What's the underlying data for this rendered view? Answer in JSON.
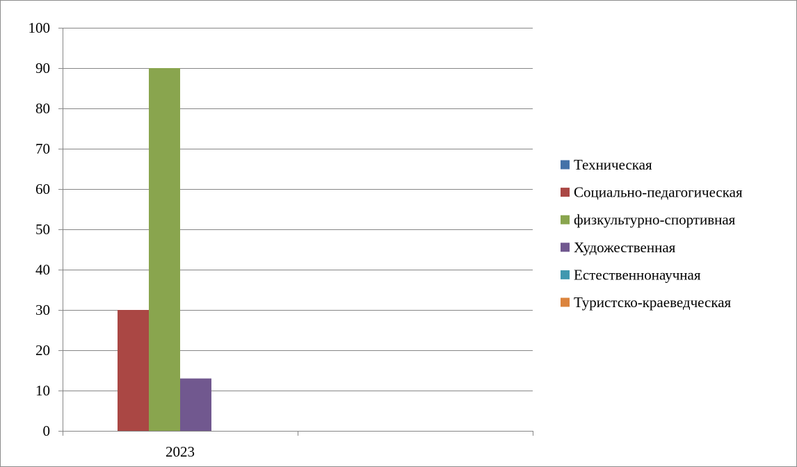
{
  "chart_data": {
    "type": "bar",
    "title": "",
    "xlabel": "",
    "ylabel": "",
    "categories": [
      "2023",
      ""
    ],
    "ylim": [
      0,
      100
    ],
    "yticks": [
      0,
      10,
      20,
      30,
      40,
      50,
      60,
      70,
      80,
      90,
      100
    ],
    "grid": true,
    "legend_position": "right",
    "series": [
      {
        "name": "Техническая",
        "color": "#4472a8",
        "values": [
          0,
          0
        ]
      },
      {
        "name": "Социально-педагогическая",
        "color": "#aa4744",
        "values": [
          30,
          0
        ]
      },
      {
        "name": "физкультурно-спортивная",
        "color": "#89a54e",
        "values": [
          90,
          0
        ]
      },
      {
        "name": "Художественная",
        "color": "#71588f",
        "values": [
          13,
          0
        ]
      },
      {
        "name": "Естественнонаучная",
        "color": "#4198af",
        "values": [
          0,
          0
        ]
      },
      {
        "name": "Туристско-краеведческая",
        "color": "#db843d",
        "values": [
          0,
          0
        ]
      }
    ]
  }
}
